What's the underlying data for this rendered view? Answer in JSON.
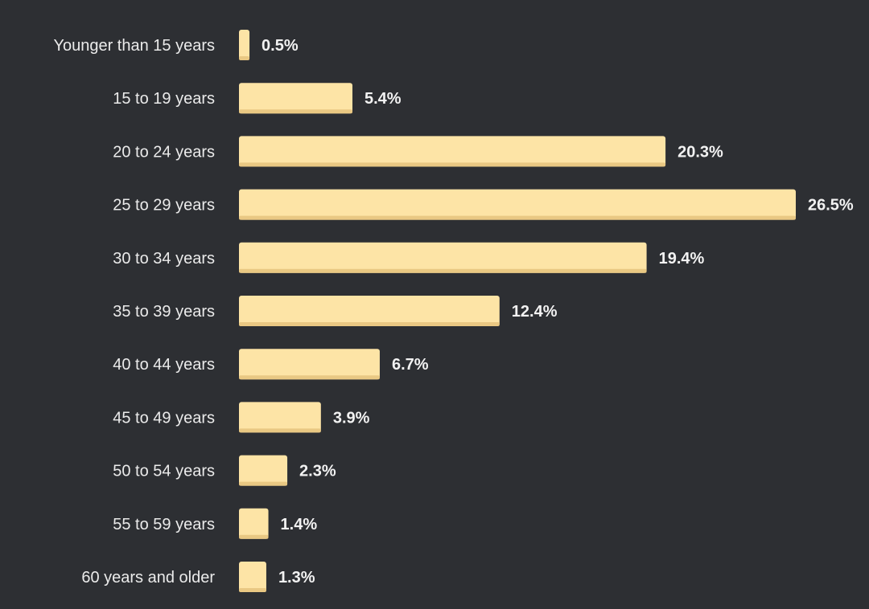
{
  "chart_data": {
    "type": "bar",
    "orientation": "horizontal",
    "categories": [
      "Younger than 15 years",
      "15 to 19 years",
      "20 to 24 years",
      "25 to 29 years",
      "30 to 34 years",
      "35 to 39 years",
      "40 to 44 years",
      "45 to 49 years",
      "50 to 54 years",
      "55 to 59 years",
      "60 years and older"
    ],
    "values": [
      0.5,
      5.4,
      20.3,
      26.5,
      19.4,
      12.4,
      6.7,
      3.9,
      2.3,
      1.4,
      1.3
    ],
    "value_labels": [
      "0.5%",
      "5.4%",
      "20.3%",
      "26.5%",
      "19.4%",
      "12.4%",
      "6.7%",
      "3.9%",
      "2.3%",
      "1.4%",
      "1.3%"
    ],
    "xlim": [
      0,
      26.5
    ],
    "grid": false,
    "colors": {
      "background": "#2d2f33",
      "bar": "#fde4a6",
      "bar_shade": "#e9c883",
      "category_text": "#ebebeb",
      "value_text": "#f2f2f2"
    }
  }
}
